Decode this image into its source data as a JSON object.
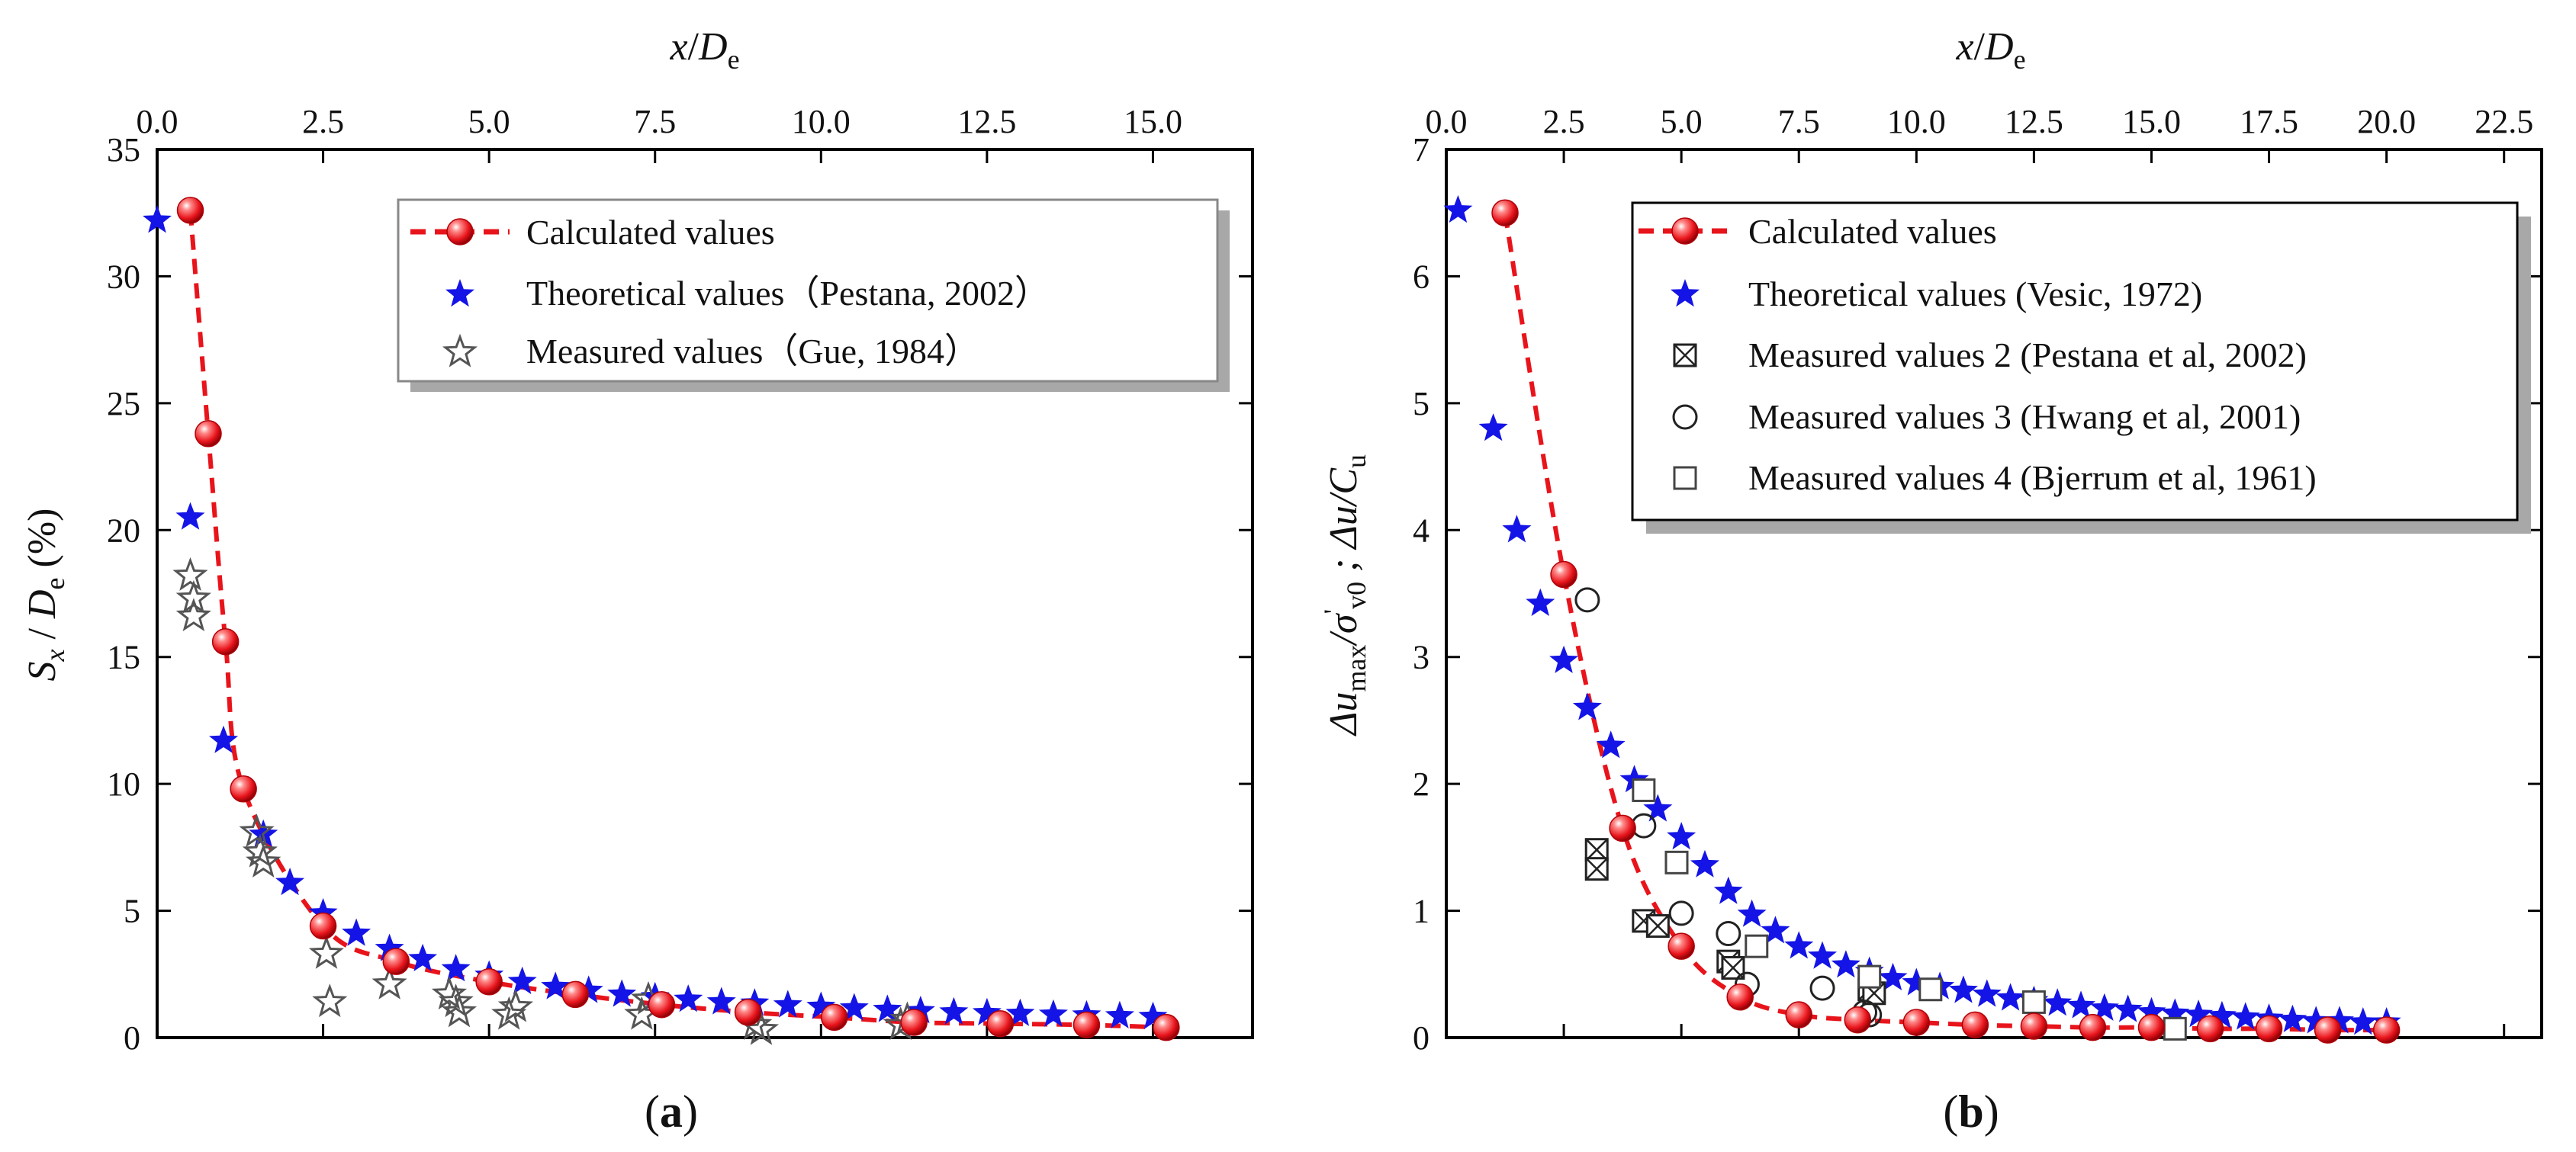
{
  "chart_data": [
    {
      "panel": "a",
      "type": "scatter",
      "panel_label": "(a)",
      "title_top": "x/De",
      "xlabel_top": {
        "main": "x",
        "sep": "/",
        "var": "D",
        "sub": "e"
      },
      "ylabel": {
        "var1": "S",
        "sub1": "x",
        "sep": " / ",
        "var2": "D",
        "sub2": "e",
        "suffix": " (%)"
      },
      "xlim": [
        0,
        16.5
      ],
      "ylim": [
        0,
        35
      ],
      "x_ticks": [
        0.0,
        2.5,
        5.0,
        7.5,
        10.0,
        12.5,
        15.0
      ],
      "x_tick_labels": [
        "0.0",
        "2.5",
        "5.0",
        "7.5",
        "10.0",
        "12.5",
        "15.0"
      ],
      "y_ticks": [
        0,
        5,
        10,
        15,
        20,
        25,
        30,
        35
      ],
      "y_tick_labels": [
        "0",
        "5",
        "10",
        "15",
        "20",
        "25",
        "30",
        "35"
      ],
      "legend": [
        "Calculated values",
        "Theoretical values（Pestana, 2002）",
        "Measured values（Gue, 1984）"
      ],
      "series": [
        {
          "name": "Calculated values",
          "marker": "ball",
          "color": "#e8141b",
          "line": "dashed",
          "x": [
            0.5,
            0.77,
            1.03,
            1.3,
            2.5,
            3.6,
            5.0,
            6.3,
            7.6,
            8.9,
            10.2,
            11.4,
            12.7,
            14.0,
            15.2
          ],
          "y": [
            32.6,
            23.8,
            15.6,
            9.8,
            4.4,
            3.0,
            2.2,
            1.7,
            1.3,
            1.0,
            0.8,
            0.6,
            0.55,
            0.5,
            0.4
          ]
        },
        {
          "name": "Theoretical values（Pestana, 2002）",
          "marker": "star",
          "color": "#1414e6",
          "x": [
            0.0,
            0.5,
            1.0,
            1.6,
            2.0,
            2.5,
            3.0,
            3.5,
            4.0,
            4.5,
            5.0,
            5.5,
            6.0,
            6.5,
            7.0,
            7.5,
            8.0,
            8.5,
            9.0,
            9.5,
            10.0,
            10.5,
            11.0,
            11.5,
            12.0,
            12.5,
            13.0,
            13.5,
            14.0,
            14.5,
            15.0
          ],
          "y": [
            32.2,
            20.5,
            11.7,
            8.0,
            6.1,
            4.9,
            4.1,
            3.5,
            3.1,
            2.7,
            2.45,
            2.2,
            2.0,
            1.85,
            1.7,
            1.6,
            1.5,
            1.4,
            1.35,
            1.28,
            1.22,
            1.16,
            1.1,
            1.05,
            1.0,
            0.97,
            0.94,
            0.91,
            0.88,
            0.85,
            0.82
          ]
        },
        {
          "name": "Measured values（Gue, 1984）",
          "marker": "open-star",
          "color": "#555555",
          "x": [
            0.5,
            0.55,
            0.55,
            1.5,
            1.55,
            1.6,
            2.55,
            2.6,
            3.5,
            4.4,
            4.5,
            4.55,
            5.3,
            5.4,
            7.3,
            7.4,
            9.0,
            9.1,
            11.2,
            11.3
          ],
          "y": [
            18.2,
            17.3,
            16.6,
            8.1,
            7.3,
            6.9,
            3.3,
            1.4,
            2.1,
            1.7,
            1.4,
            1.0,
            0.9,
            1.2,
            0.9,
            1.5,
            0.5,
            0.3,
            0.5,
            0.7
          ]
        }
      ]
    },
    {
      "panel": "b",
      "type": "scatter",
      "panel_label": "(b)",
      "title_top": "x/De",
      "xlabel_top": {
        "main": "x",
        "sep": "/",
        "var": "D",
        "sub": "e"
      },
      "ylabel": {
        "p1": "Δu",
        "sub1": "max",
        "p2": "/σ",
        "sup2": "'",
        "sub2": "v0",
        "p3": " ; Δu/C",
        "sub3": "u"
      },
      "xlim": [
        0,
        23.3
      ],
      "ylim": [
        0,
        7
      ],
      "x_ticks": [
        0.0,
        2.5,
        5.0,
        7.5,
        10.0,
        12.5,
        15.0,
        17.5,
        20.0,
        22.5
      ],
      "x_tick_labels": [
        "0.0",
        "2.5",
        "5.0",
        "7.5",
        "10.0",
        "12.5",
        "15.0",
        "17.5",
        "20.0",
        "22.5"
      ],
      "y_ticks": [
        0,
        1,
        2,
        3,
        4,
        5,
        6,
        7
      ],
      "y_tick_labels": [
        "0",
        "1",
        "2",
        "3",
        "4",
        "5",
        "6",
        "7"
      ],
      "legend": [
        "Calculated values",
        "Theoretical values (Vesic, 1972)",
        "Measured values 2 (Pestana et al, 2002)",
        "Measured values 3 (Hwang et al, 2001)",
        "Measured values 4 (Bjerrum et al, 1961)"
      ],
      "series": [
        {
          "name": "Calculated values",
          "marker": "ball",
          "color": "#e8141b",
          "line": "dashed",
          "x": [
            1.25,
            2.5,
            3.75,
            5.0,
            6.25,
            7.5,
            8.75,
            10.0,
            11.25,
            12.5,
            13.75,
            15.0,
            16.25,
            17.5,
            18.75,
            20.0
          ],
          "y": [
            6.5,
            3.65,
            1.65,
            0.72,
            0.32,
            0.18,
            0.14,
            0.12,
            0.1,
            0.09,
            0.08,
            0.08,
            0.07,
            0.07,
            0.06,
            0.06
          ]
        },
        {
          "name": "Theoretical values (Vesic, 1972)",
          "marker": "star",
          "color": "#1414e6",
          "x": [
            0.25,
            1.0,
            1.5,
            2.0,
            2.5,
            3.0,
            3.5,
            4.0,
            4.5,
            5.0,
            5.5,
            6.0,
            6.5,
            7.0,
            7.5,
            8.0,
            8.5,
            9.0,
            9.5,
            10.0,
            10.5,
            11.0,
            11.5,
            12.0,
            12.5,
            13.0,
            13.5,
            14.0,
            14.5,
            15.0,
            15.5,
            16.0,
            16.5,
            17.0,
            17.5,
            18.0,
            18.5,
            19.0,
            19.5,
            20.0
          ],
          "y": [
            6.52,
            4.8,
            4.0,
            3.42,
            2.97,
            2.6,
            2.3,
            2.03,
            1.8,
            1.58,
            1.36,
            1.15,
            0.97,
            0.84,
            0.72,
            0.64,
            0.57,
            0.52,
            0.47,
            0.43,
            0.4,
            0.37,
            0.34,
            0.31,
            0.29,
            0.27,
            0.25,
            0.23,
            0.22,
            0.2,
            0.19,
            0.18,
            0.17,
            0.16,
            0.15,
            0.14,
            0.13,
            0.13,
            0.12,
            0.12
          ]
        },
        {
          "name": "Measured values 2 (Pestana et al, 2002)",
          "marker": "crossed-square",
          "color": "#222222",
          "x": [
            3.2,
            3.2,
            4.2,
            4.5,
            6.0,
            6.1,
            9.0,
            9.1
          ],
          "y": [
            1.48,
            1.33,
            0.92,
            0.88,
            0.6,
            0.55,
            0.38,
            0.35
          ]
        },
        {
          "name": "Measured values 3 (Hwang et al, 2001)",
          "marker": "circle",
          "color": "#222222",
          "x": [
            3.0,
            4.2,
            5.0,
            6.0,
            6.4,
            8.0,
            8.9,
            9.0
          ],
          "y": [
            3.45,
            1.67,
            0.98,
            0.82,
            0.42,
            0.39,
            0.2,
            0.18
          ]
        },
        {
          "name": "Measured values 4 (Bjerrum et al, 1961)",
          "marker": "square",
          "color": "#222222",
          "x": [
            4.2,
            4.9,
            6.6,
            9.0,
            10.3,
            12.5,
            15.5
          ],
          "y": [
            1.95,
            1.38,
            0.72,
            0.48,
            0.38,
            0.28,
            0.07
          ]
        }
      ]
    }
  ]
}
